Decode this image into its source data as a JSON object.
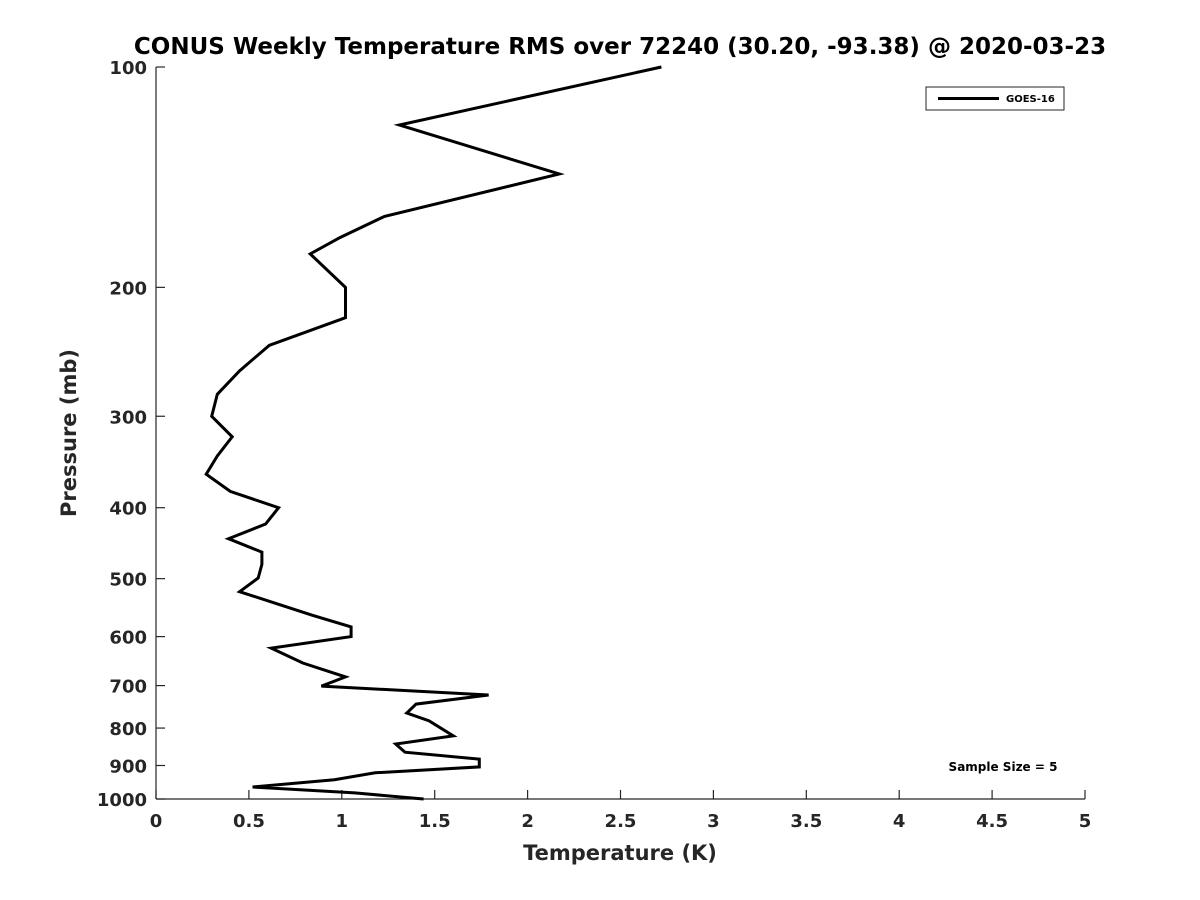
{
  "chart_data": {
    "type": "line",
    "title": "CONUS Weekly Temperature RMS over 72240 (30.20, -93.38) @ 2020-03-23",
    "xlabel": "Temperature (K)",
    "ylabel": "Pressure (mb)",
    "xlim": [
      0,
      5
    ],
    "ylim": [
      100,
      1000
    ],
    "yscale": "log",
    "yreversed": true,
    "grid": false,
    "xticks": [
      0,
      0.5,
      1,
      1.5,
      2,
      2.5,
      3,
      3.5,
      4,
      4.5,
      5
    ],
    "xtick_labels": [
      "0",
      "0.5",
      "1",
      "1.5",
      "2",
      "2.5",
      "3",
      "3.5",
      "4",
      "4.5",
      "5"
    ],
    "yticks": [
      100,
      200,
      300,
      400,
      500,
      600,
      700,
      800,
      900,
      1000
    ],
    "ytick_labels": [
      "100",
      "200",
      "300",
      "400",
      "500",
      "600",
      "700",
      "800",
      "900",
      "1000"
    ],
    "legend": {
      "placement": "top-right",
      "entries": [
        "GOES-16"
      ]
    },
    "annotation": "Sample Size = 5",
    "series": [
      {
        "name": "GOES-16",
        "color": "#000000",
        "x": [
          2.72,
          1.31,
          2.17,
          1.23,
          0.99,
          0.83,
          1.02,
          1.02,
          0.61,
          0.45,
          0.33,
          0.3,
          0.41,
          0.33,
          0.27,
          0.4,
          0.66,
          0.59,
          0.39,
          0.57,
          0.57,
          0.55,
          0.45,
          0.66,
          0.84,
          1.05,
          1.05,
          0.62,
          0.79,
          1.02,
          0.89,
          1.79,
          1.4,
          1.35,
          1.47,
          1.6,
          1.29,
          1.34,
          1.74,
          1.74,
          1.18,
          0.96,
          0.52,
          1.07,
          1.44
        ],
        "y": [
          100,
          120,
          140,
          160,
          171,
          180,
          200,
          220,
          240,
          260,
          280,
          300,
          320,
          340,
          360,
          380,
          400,
          421,
          441,
          460,
          478,
          499,
          521,
          542,
          561,
          582,
          600,
          622,
          652,
          681,
          701,
          721,
          742,
          763,
          782,
          820,
          841,
          863,
          882,
          904,
          921,
          941,
          963,
          981,
          1000
        ]
      }
    ]
  }
}
